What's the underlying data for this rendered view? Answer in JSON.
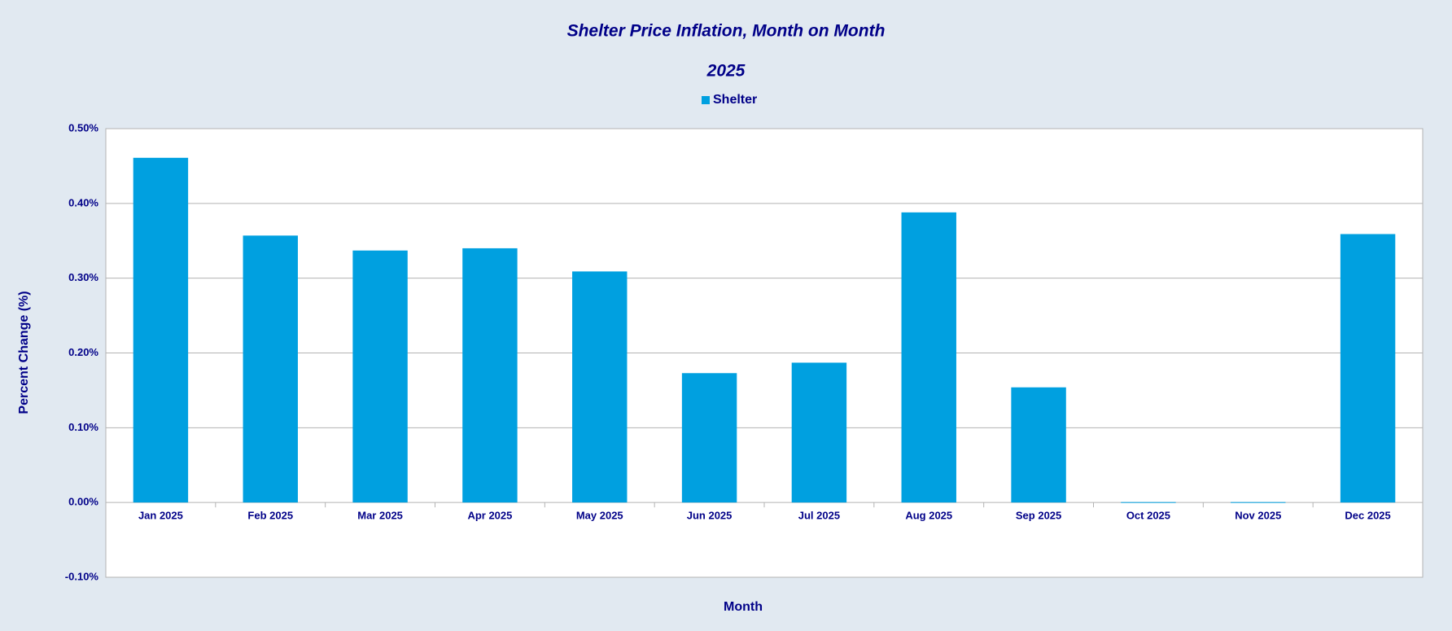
{
  "chart_data": {
    "type": "bar",
    "title": "Shelter Price Inflation, Month on Month",
    "subtitle": "2025",
    "x_label": "Month",
    "y_label": "Percent Change (%)",
    "categories": [
      "Jan 2025",
      "Feb 2025",
      "Mar 2025",
      "Apr 2025",
      "May 2025",
      "Jun 2025",
      "Jul 2025",
      "Aug 2025",
      "Sep 2025",
      "Oct 2025",
      "Nov 2025",
      "Dec 2025"
    ],
    "series": [
      {
        "name": "Shelter",
        "color": "#00a0e0",
        "values": [
          0.461,
          0.357,
          0.337,
          0.34,
          0.309,
          0.173,
          0.187,
          0.388,
          0.154,
          0,
          0,
          0.359
        ]
      }
    ],
    "ylim": [
      -0.1,
      0.5
    ],
    "yticks": [
      {
        "value": -0.1,
        "label": "-0.10%"
      },
      {
        "value": 0,
        "label": "0.00%"
      },
      {
        "value": 0.1,
        "label": "0.10%"
      },
      {
        "value": 0.2,
        "label": "0.20%"
      },
      {
        "value": 0.3,
        "label": "0.30%"
      },
      {
        "value": 0.4,
        "label": "0.40%"
      },
      {
        "value": 0.5,
        "label": "0.50%"
      }
    ],
    "grid": true,
    "legend": "top"
  }
}
